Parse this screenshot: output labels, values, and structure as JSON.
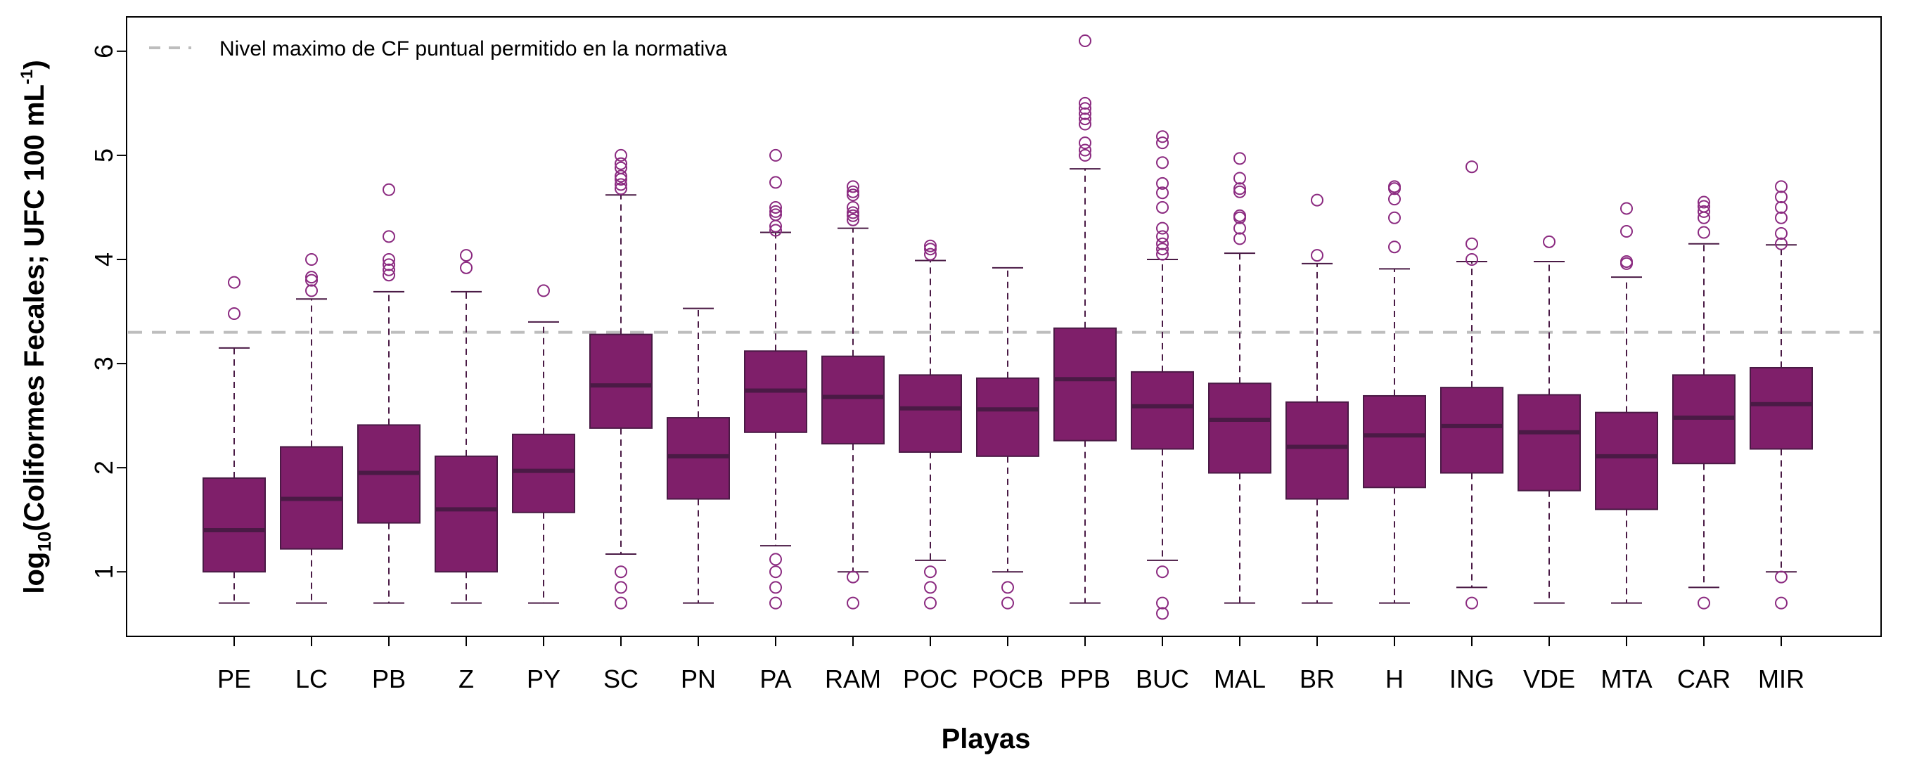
{
  "chart_data": {
    "type": "boxplot",
    "title": "",
    "xlabel": "Playas",
    "ylabel": {
      "prefix": "log",
      "sub": "10",
      "main": "(Coliformes Fecales; UFC 100 mL",
      "sup": "-1",
      "suffix": ")"
    },
    "ylim": [
      0.38,
      6.33
    ],
    "yticks": [
      1,
      2,
      3,
      4,
      5,
      6
    ],
    "grid": false,
    "legend": {
      "position": "top-left",
      "entries": [
        {
          "label": "Nivel maximo de CF puntual permitido en la normativa",
          "style": "dashed",
          "color": "#bdbdbd"
        }
      ]
    },
    "reference_line": {
      "y": 3.3,
      "color": "#bdbdbd"
    },
    "colors": {
      "box_fill": "#7f1f6a",
      "box_border": "#4a1a45",
      "median": "#4a1a45",
      "whisker": "#4a1a45",
      "outlier": "#8b2a80"
    },
    "categories": [
      "PE",
      "LC",
      "PB",
      "Z",
      "PY",
      "SC",
      "PN",
      "PA",
      "RAM",
      "POC",
      "POCB",
      "PPB",
      "BUC",
      "MAL",
      "BR",
      "H",
      "ING",
      "VDE",
      "MTA",
      "CAR",
      "MIR"
    ],
    "boxes": [
      {
        "low": 0.7,
        "q1": 1.0,
        "median": 1.4,
        "q3": 1.9,
        "high": 3.15,
        "outliers": [
          3.48,
          3.78
        ]
      },
      {
        "low": 0.7,
        "q1": 1.22,
        "median": 1.7,
        "q3": 2.2,
        "high": 3.62,
        "outliers": [
          3.7,
          3.8,
          3.83,
          4.0
        ]
      },
      {
        "low": 0.7,
        "q1": 1.47,
        "median": 1.95,
        "q3": 2.41,
        "high": 3.69,
        "outliers": [
          3.85,
          3.9,
          3.95,
          4.0,
          4.22,
          4.67
        ]
      },
      {
        "low": 0.7,
        "q1": 1.0,
        "median": 1.6,
        "q3": 2.11,
        "high": 3.69,
        "outliers": [
          3.92,
          4.04
        ]
      },
      {
        "low": 0.7,
        "q1": 1.57,
        "median": 1.97,
        "q3": 2.32,
        "high": 3.4,
        "outliers": [
          3.7
        ]
      },
      {
        "low": 1.17,
        "q1": 2.38,
        "median": 2.79,
        "q3": 3.28,
        "high": 4.62,
        "outliers": [
          4.68,
          4.72,
          4.77,
          4.8,
          4.88,
          4.92,
          5.0,
          1.0,
          0.85,
          0.7
        ]
      },
      {
        "low": 0.7,
        "q1": 1.7,
        "median": 2.11,
        "q3": 2.48,
        "high": 3.53,
        "outliers": []
      },
      {
        "low": 1.25,
        "q1": 2.34,
        "median": 2.74,
        "q3": 3.12,
        "high": 4.26,
        "outliers": [
          4.28,
          4.32,
          4.43,
          4.46,
          4.5,
          4.74,
          5.0,
          1.12,
          1.0,
          0.85,
          0.7
        ]
      },
      {
        "low": 1.0,
        "q1": 2.23,
        "median": 2.68,
        "q3": 3.07,
        "high": 4.3,
        "outliers": [
          4.38,
          4.42,
          4.45,
          4.5,
          4.62,
          4.65,
          4.7,
          0.95,
          0.7
        ]
      },
      {
        "low": 1.11,
        "q1": 2.15,
        "median": 2.57,
        "q3": 2.89,
        "high": 3.99,
        "outliers": [
          4.05,
          4.1,
          4.13,
          1.0,
          0.85,
          0.7
        ]
      },
      {
        "low": 1.0,
        "q1": 2.11,
        "median": 2.56,
        "q3": 2.86,
        "high": 3.92,
        "outliers": [
          0.85,
          0.7
        ]
      },
      {
        "low": 0.7,
        "q1": 2.26,
        "median": 2.85,
        "q3": 3.34,
        "high": 4.87,
        "outliers": [
          5.0,
          5.05,
          5.12,
          5.3,
          5.35,
          5.4,
          5.45,
          5.5,
          6.1
        ]
      },
      {
        "low": 1.11,
        "q1": 2.18,
        "median": 2.59,
        "q3": 2.92,
        "high": 4.0,
        "outliers": [
          4.05,
          4.1,
          4.15,
          4.22,
          4.3,
          4.5,
          4.64,
          4.73,
          4.93,
          5.12,
          5.18,
          1.0,
          0.7,
          0.6
        ]
      },
      {
        "low": 0.7,
        "q1": 1.95,
        "median": 2.46,
        "q3": 2.81,
        "high": 4.06,
        "outliers": [
          4.2,
          4.3,
          4.4,
          4.42,
          4.65,
          4.68,
          4.78,
          4.97
        ]
      },
      {
        "low": 0.7,
        "q1": 1.7,
        "median": 2.2,
        "q3": 2.63,
        "high": 3.96,
        "outliers": [
          4.04,
          4.57
        ]
      },
      {
        "low": 0.7,
        "q1": 1.81,
        "median": 2.31,
        "q3": 2.69,
        "high": 3.91,
        "outliers": [
          4.12,
          4.4,
          4.58,
          4.68,
          4.7
        ]
      },
      {
        "low": 0.85,
        "q1": 1.95,
        "median": 2.4,
        "q3": 2.77,
        "high": 3.98,
        "outliers": [
          4.0,
          4.15,
          4.89,
          0.7
        ]
      },
      {
        "low": 0.7,
        "q1": 1.78,
        "median": 2.34,
        "q3": 2.7,
        "high": 3.98,
        "outliers": [
          4.17
        ]
      },
      {
        "low": 0.7,
        "q1": 1.6,
        "median": 2.11,
        "q3": 2.53,
        "high": 3.83,
        "outliers": [
          3.96,
          3.98,
          4.27,
          4.49
        ]
      },
      {
        "low": 0.85,
        "q1": 2.04,
        "median": 2.48,
        "q3": 2.89,
        "high": 4.15,
        "outliers": [
          4.26,
          4.4,
          4.46,
          4.51,
          4.55,
          0.7
        ]
      },
      {
        "low": 1.0,
        "q1": 2.18,
        "median": 2.61,
        "q3": 2.96,
        "high": 4.14,
        "outliers": [
          4.15,
          4.25,
          4.4,
          4.5,
          4.6,
          4.7,
          0.95,
          0.7
        ]
      }
    ]
  }
}
